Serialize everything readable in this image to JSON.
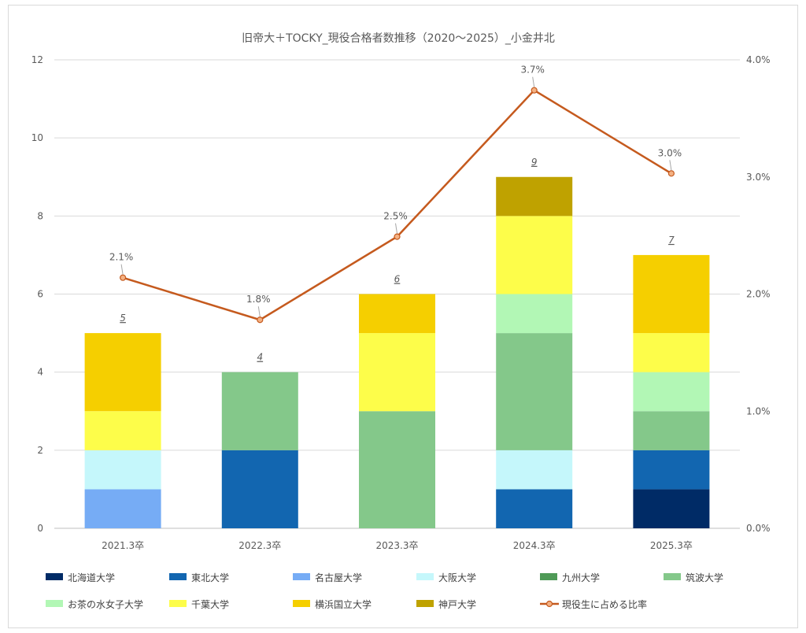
{
  "chart_data": {
    "type": "bar",
    "stacked": true,
    "title": "旧帝大＋TOCKY_現役合格者数推移（2020～2025）_小金井北",
    "categories": [
      "2021.3卒",
      "2022.3卒",
      "2023.3卒",
      "2024.3卒",
      "2025.3卒"
    ],
    "ylim": [
      0,
      12
    ],
    "yticks": [
      "0",
      "2",
      "4",
      "6",
      "8",
      "10",
      "12"
    ],
    "y2lim": [
      0,
      4.0
    ],
    "y2ticks": [
      "0.0%",
      "1.0%",
      "2.0%",
      "3.0%",
      "4.0%"
    ],
    "grid": true,
    "legend_position": "bottom",
    "series": [
      {
        "name": "北海道大学",
        "color": "#002b66",
        "values": [
          0,
          0,
          0,
          0,
          1
        ]
      },
      {
        "name": "東北大学",
        "color": "#1266b0",
        "values": [
          0,
          2,
          0,
          1,
          1
        ]
      },
      {
        "name": "名古屋大学",
        "color": "#76acf5",
        "values": [
          1,
          0,
          0,
          0,
          0
        ]
      },
      {
        "name": "大阪大学",
        "color": "#c5f7fb",
        "values": [
          1,
          0,
          0,
          1,
          0
        ]
      },
      {
        "name": "九州大学",
        "color": "#4f9a57",
        "values": [
          0,
          0,
          0,
          0,
          0
        ]
      },
      {
        "name": "筑波大学",
        "color": "#84c88a",
        "values": [
          0,
          2,
          3,
          3,
          1
        ]
      },
      {
        "name": "お茶の水女子大学",
        "color": "#b2f7b5",
        "values": [
          0,
          0,
          0,
          1,
          1
        ]
      },
      {
        "name": "千葉大学",
        "color": "#fdfd4a",
        "values": [
          1,
          0,
          2,
          2,
          1
        ]
      },
      {
        "name": "横浜国立大学",
        "color": "#f5cf00",
        "values": [
          2,
          0,
          1,
          0,
          2
        ]
      },
      {
        "name": "神戸大学",
        "color": "#bfa200",
        "values": [
          0,
          0,
          0,
          1,
          0
        ]
      }
    ],
    "totals": [
      "5",
      "4",
      "6",
      "9",
      "7"
    ],
    "line": {
      "name": "現役生に占める比率",
      "color": "#c55a1e",
      "values": [
        2.14,
        1.78,
        2.49,
        3.74,
        3.03
      ],
      "labels": [
        "2.1%",
        "1.8%",
        "2.5%",
        "3.7%",
        "3.0%"
      ]
    }
  }
}
